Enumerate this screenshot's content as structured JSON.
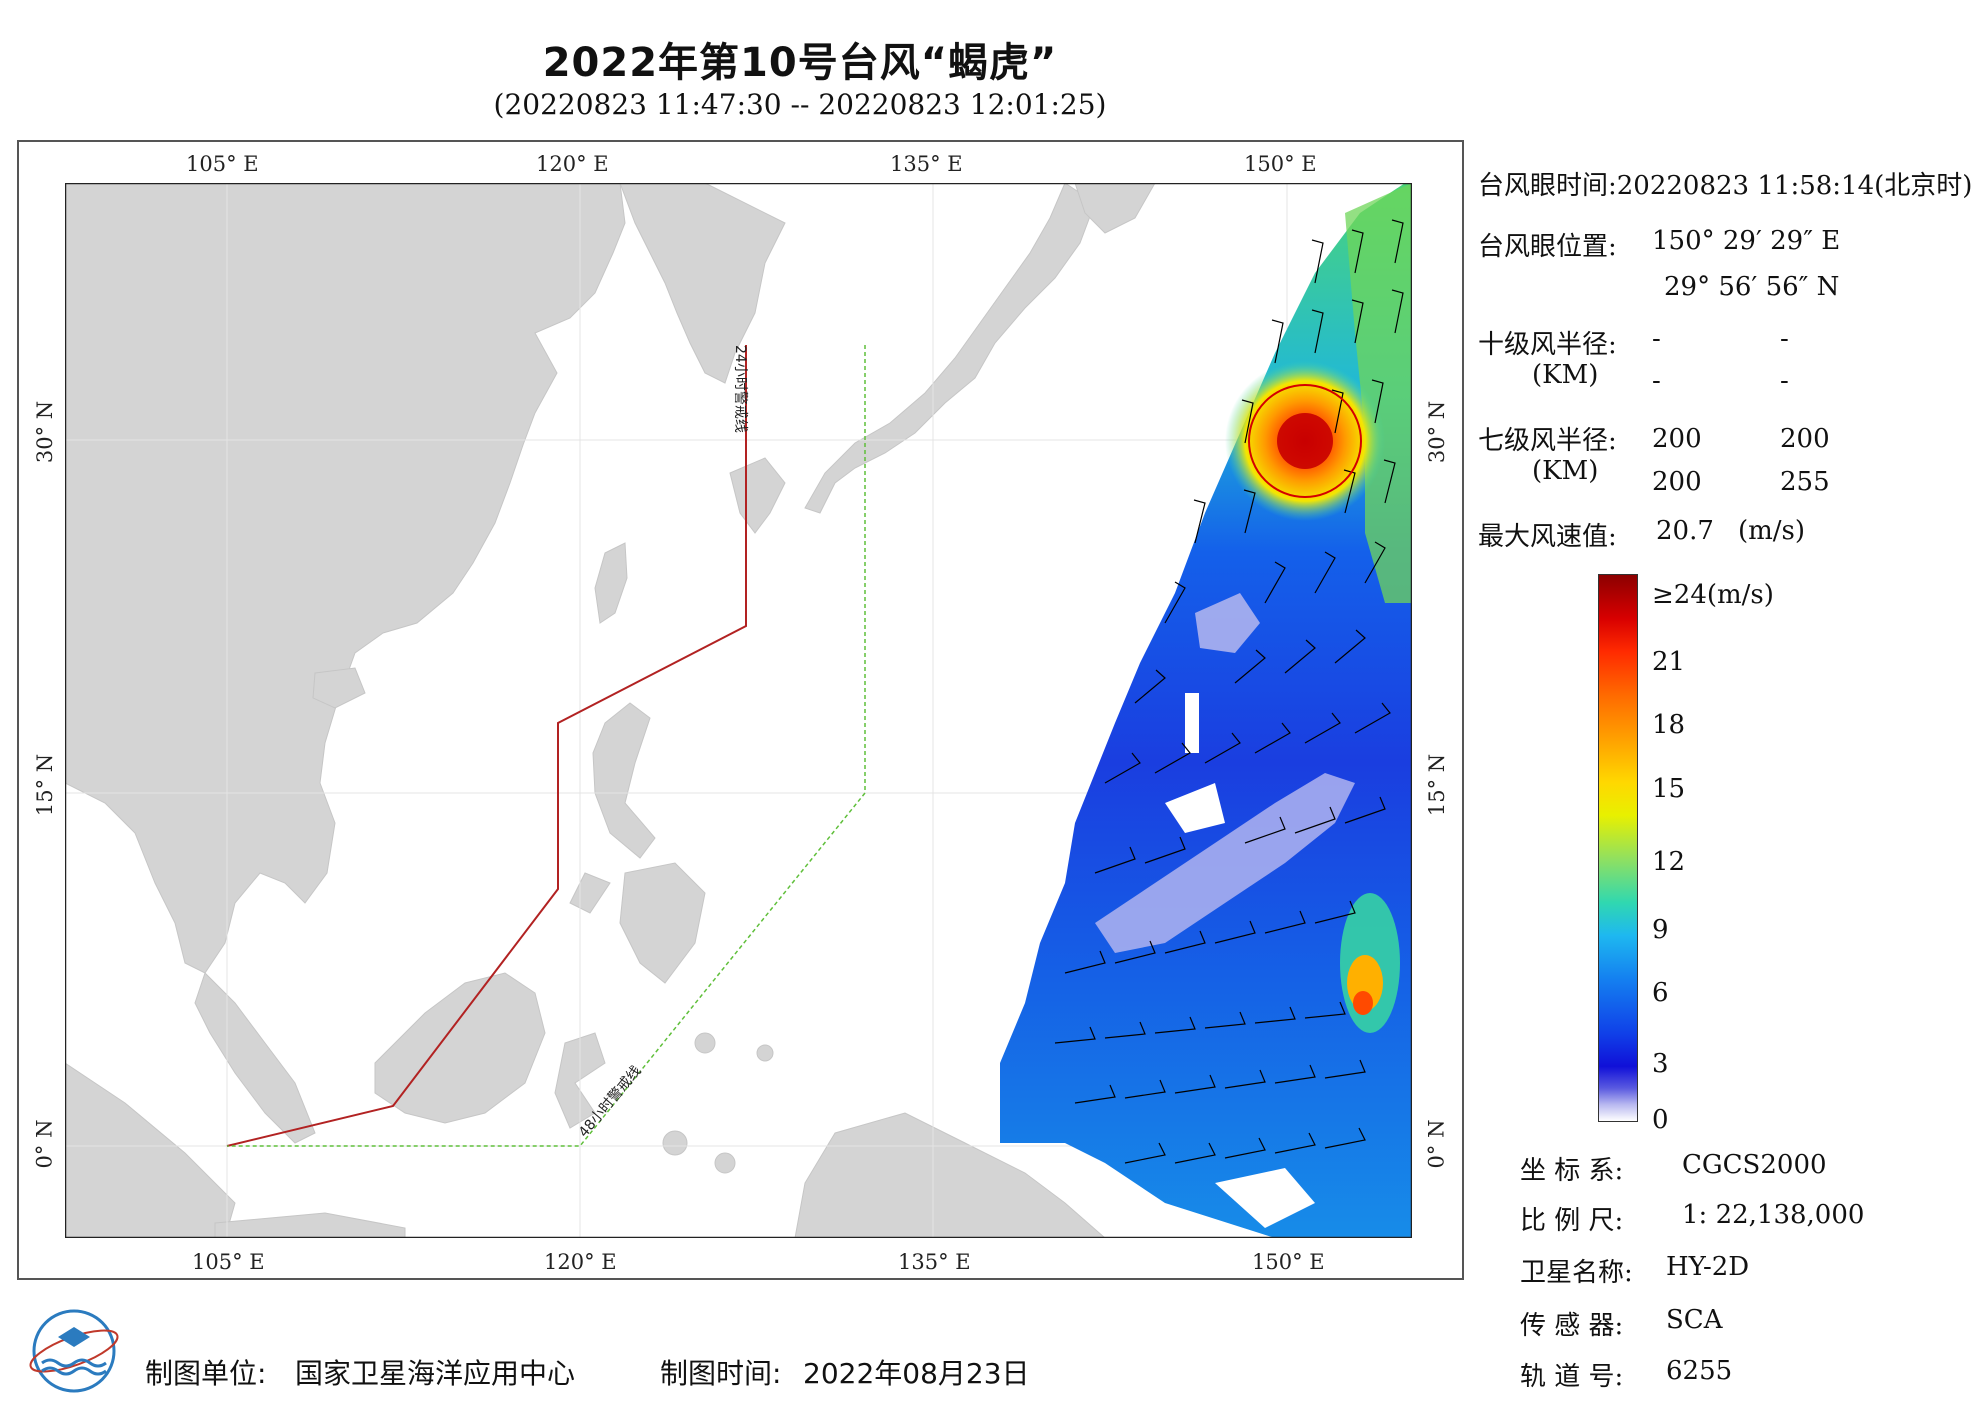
{
  "header": {
    "title": "2022年第10号台风“蝎虎”",
    "subtitle": "(20220823 11:47:30 -- 20220823 12:01:25)"
  },
  "map": {
    "lon_ticks_top": [
      "105° E",
      "120° E",
      "135° E",
      "150° E"
    ],
    "lon_ticks_bottom": [
      "105° E",
      "120° E",
      "135° E",
      "150° E"
    ],
    "lat_ticks_left": [
      "30° N",
      "15° N",
      "0° N"
    ],
    "lat_ticks_right": [
      "30° N",
      "15° N",
      "0° N"
    ],
    "warning_line_24h": "24小时警戒线",
    "warning_line_48h": "48小时警戒线",
    "colors": {
      "land": "#d4d4d4",
      "ocean": "#ffffff",
      "warning_24h": "#b22222",
      "warning_48h": "#5fbf3a",
      "typhoon_circle": "#d40000"
    }
  },
  "info": {
    "eye_time_label": "台风眼时间:",
    "eye_time_value": "20220823 11:58:14(北京时)",
    "eye_pos_label": "台风眼位置:",
    "eye_lon": "150° 29′ 29″ E",
    "eye_lat": "29° 56′ 56″ N",
    "r10_label": "十级风半径:",
    "r10_unit": "(KM)",
    "r10_values": [
      "-",
      "-",
      "-",
      "-"
    ],
    "r7_label": "七级风半径:",
    "r7_unit": "(KM)",
    "r7_values": [
      "200",
      "200",
      "200",
      "255"
    ],
    "max_wind_label": "最大风速值:",
    "max_wind_value": "20.7",
    "max_wind_unit": "(m/s)"
  },
  "colorbar": {
    "top_label": "≥24(m/s)",
    "labels": [
      "21",
      "18",
      "15",
      "12",
      "9",
      "6",
      "3",
      "0"
    ],
    "values": [
      21,
      18,
      15,
      12,
      9,
      6,
      3,
      0
    ],
    "max": 24
  },
  "meta": {
    "coord_label": "坐 标 系:",
    "coord_value": "CGCS2000",
    "scale_label": "比 例 尺:",
    "scale_value": "1: 22,138,000",
    "sat_label": "卫星名称:",
    "sat_value": "HY-2D",
    "sensor_label": "传 感 器:",
    "sensor_value": "SCA",
    "orbit_label": "轨 道 号:",
    "orbit_value": "6255"
  },
  "footer": {
    "org_label": "制图单位:",
    "org_value": "国家卫星海洋应用中心",
    "date_label": "制图时间:",
    "date_value": "2022年08月23日"
  }
}
